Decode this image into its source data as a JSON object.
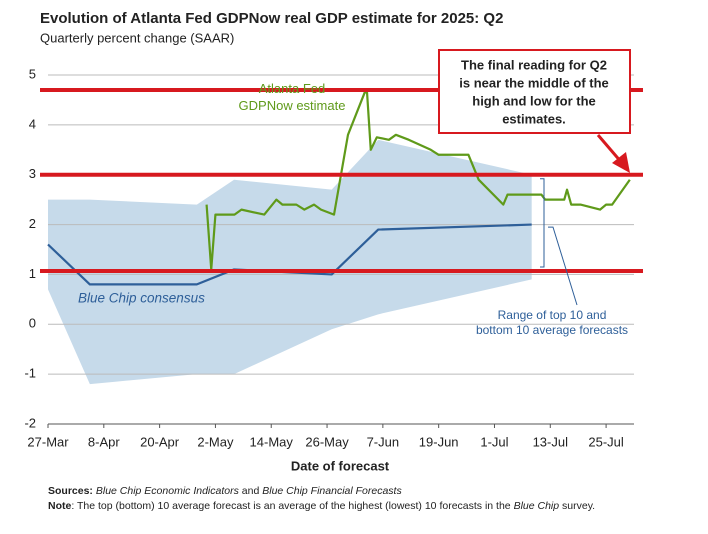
{
  "chart_data": {
    "type": "line",
    "title": "Evolution of Atlanta Fed GDPNow real GDP estimate for 2025: Q2",
    "subtitle": "Quarterly percent change (SAAR)",
    "x_label": "Date of forecast",
    "xlim": [
      0,
      126
    ],
    "xticks": [
      {
        "value": 0,
        "label": "27-Mar"
      },
      {
        "value": 12,
        "label": "8-Apr"
      },
      {
        "value": 24,
        "label": "20-Apr"
      },
      {
        "value": 36,
        "label": "2-May"
      },
      {
        "value": 48,
        "label": "14-May"
      },
      {
        "value": 60,
        "label": "26-May"
      },
      {
        "value": 72,
        "label": "7-Jun"
      },
      {
        "value": 84,
        "label": "19-Jun"
      },
      {
        "value": 96,
        "label": "1-Jul"
      },
      {
        "value": 108,
        "label": "13-Jul"
      },
      {
        "value": 120,
        "label": "25-Jul"
      }
    ],
    "ylim": [
      -2,
      5
    ],
    "yticks": [
      -2,
      -1,
      0,
      1,
      2,
      3,
      4,
      5
    ],
    "grid": true,
    "range": {
      "color": "#c6daea",
      "x": [
        0,
        9,
        32,
        40,
        61,
        71,
        104
      ],
      "high": [
        2.5,
        2.5,
        2.4,
        2.9,
        2.7,
        3.7,
        3.0
      ],
      "low": [
        0.7,
        -1.2,
        -1.0,
        -1.0,
        -0.1,
        0.2,
        0.9
      ]
    },
    "series": [
      {
        "name": "Atlanta Fed GDPNow estimate",
        "color": "#5f9a1a",
        "x": [
          34.1,
          35.1,
          36,
          40.1,
          41.6,
          46.5,
          49.1,
          50.4,
          53.4,
          55.1,
          57.2,
          58.7,
          61.5,
          64.5,
          68.1,
          68.6,
          69.4,
          70.7,
          73.3,
          74.8,
          77.6,
          82.3,
          84,
          90.4,
          92.6,
          97.9,
          98.8,
          106.1,
          106.9,
          111,
          111.6,
          112.5,
          114.6,
          118.7,
          120,
          121.3,
          125.1
        ],
        "values": [
          2.4,
          1.1,
          2.2,
          2.2,
          2.3,
          2.2,
          2.5,
          2.4,
          2.4,
          2.3,
          2.4,
          2.3,
          2.2,
          3.8,
          4.65,
          4.65,
          3.5,
          3.75,
          3.7,
          3.8,
          3.7,
          3.5,
          3.4,
          3.4,
          2.9,
          2.4,
          2.6,
          2.6,
          2.5,
          2.5,
          2.7,
          2.4,
          2.4,
          2.3,
          2.4,
          2.4,
          2.9
        ]
      },
      {
        "name": "Blue Chip consensus",
        "color": "#2e5f99",
        "x": [
          0,
          9,
          32,
          40,
          61,
          71,
          104
        ],
        "values": [
          1.6,
          0.8,
          0.8,
          1.1,
          1.0,
          1.9,
          2.0
        ]
      }
    ],
    "reference_lines": {
      "color": "#d7191f",
      "values": [
        4.7,
        3.0,
        1.07
      ]
    },
    "range_label": [
      "Range of top 10 and",
      "bottom 10 average forecasts"
    ],
    "callout": [
      "The final reading for Q2",
      "is near the middle of the",
      "high and low for the",
      "estimates."
    ],
    "sources": [
      "Sources:",
      "Blue Chip Economic Indicators",
      "and",
      "Blue Chip Financial Forecasts"
    ],
    "note": [
      "Note",
      ": The top (bottom) 10 average forecast is an average of the highest (lowest) 10 forecasts in the",
      "Blue Chip",
      "survey."
    ]
  }
}
